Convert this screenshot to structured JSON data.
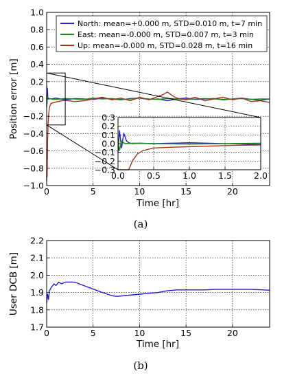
{
  "chart_data": [
    {
      "type": "line",
      "panel_label": "(a)",
      "xlabel": "Time [hr]",
      "ylabel": "Position error [m]",
      "xlim": [
        0,
        24
      ],
      "ylim": [
        -1.0,
        1.0
      ],
      "xticks": [
        "0",
        "5",
        "10",
        "15",
        "20"
      ],
      "xtick_values": [
        0,
        5,
        10,
        15,
        20
      ],
      "yticks": [
        "−1.0",
        "−0.8",
        "−0.6",
        "−0.4",
        "−0.2",
        "0.0",
        "0.2",
        "0.4",
        "0.6",
        "0.8",
        "1.0"
      ],
      "ytick_values": [
        -1.0,
        -0.8,
        -0.6,
        -0.4,
        -0.2,
        0.0,
        0.2,
        0.4,
        0.6,
        0.8,
        1.0
      ],
      "grid": true,
      "legend_position": "top-right",
      "series": [
        {
          "name": "North: mean=+0.000 m, STD=0.010 m, t=7 min",
          "color": "#1f1fd0",
          "x": [
            0,
            0.02,
            0.05,
            0.08,
            0.12,
            0.15,
            0.2,
            0.3,
            0.5,
            1,
            2,
            3,
            4,
            5,
            6,
            7,
            8,
            9,
            10,
            11,
            12,
            13,
            14,
            15,
            16,
            17,
            18,
            19,
            20,
            21,
            22,
            23,
            24
          ],
          "y": [
            -0.1,
            0.15,
            -0.05,
            0.12,
            0.03,
            0.01,
            0.0,
            0.005,
            0.0,
            0.01,
            -0.01,
            0.005,
            0.0,
            -0.005,
            0.01,
            0.0,
            -0.01,
            0.005,
            0.01,
            -0.005,
            0.0,
            -0.02,
            0.0,
            0.01,
            -0.005,
            0.0,
            0.005,
            -0.01,
            0.0,
            0.01,
            -0.005,
            -0.015,
            0.0
          ]
        },
        {
          "name": "East: mean=-0.000 m, STD=0.007 m, t=3 min",
          "color": "#1a8a1a",
          "x": [
            0,
            0.02,
            0.05,
            0.1,
            0.2,
            0.5,
            1,
            2,
            3,
            4,
            5,
            6,
            7,
            8,
            9,
            10,
            11,
            12,
            13,
            14,
            15,
            16,
            17,
            18,
            19,
            20,
            21,
            22,
            23,
            24
          ],
          "y": [
            0.05,
            -0.08,
            0.03,
            0.0,
            0.005,
            0.0,
            -0.005,
            0.005,
            0.0,
            -0.005,
            0.01,
            0.0,
            0.005,
            -0.005,
            0.0,
            0.01,
            0.0,
            -0.005,
            0.005,
            0.0,
            -0.005,
            0.0,
            0.005,
            0.0,
            -0.005,
            0.0,
            0.005,
            -0.005,
            0.0,
            0.0
          ]
        },
        {
          "name": "Up: mean=-0.000 m, STD=0.028 m, t=16 min",
          "color": "#a0321e",
          "x": [
            0,
            0.02,
            0.05,
            0.1,
            0.15,
            0.2,
            0.27,
            0.35,
            0.5,
            0.8,
            1.2,
            1.6,
            2,
            3,
            4,
            5,
            6,
            7,
            8,
            9,
            10,
            11,
            12,
            12.5,
            13,
            13.5,
            14,
            15,
            16,
            17,
            18,
            19,
            20,
            21,
            22,
            23,
            24
          ],
          "y": [
            -0.95,
            -0.6,
            -0.9,
            -0.5,
            -0.3,
            -0.2,
            -0.12,
            -0.08,
            -0.05,
            -0.04,
            -0.03,
            -0.02,
            -0.015,
            -0.03,
            -0.02,
            0.0,
            0.02,
            -0.01,
            0.01,
            -0.02,
            0.02,
            -0.01,
            0.03,
            0.05,
            0.08,
            0.04,
            0.01,
            -0.01,
            0.02,
            -0.02,
            0.0,
            0.02,
            -0.01,
            0.01,
            -0.03,
            -0.02,
            -0.04
          ]
        }
      ],
      "inset": {
        "xlim": [
          0,
          2.0
        ],
        "ylim": [
          -0.3,
          0.3
        ],
        "xticks": [
          "0.0",
          "0.5",
          "1.0",
          "1.5",
          "2.0"
        ],
        "xtick_values": [
          0,
          0.5,
          1.0,
          1.5,
          2.0
        ],
        "yticks": [
          "−0.3",
          "−0.2",
          "−0.1",
          "0.0",
          "0.1",
          "0.2",
          "0.3"
        ],
        "ytick_values": [
          -0.3,
          -0.2,
          -0.1,
          0.0,
          0.1,
          0.2,
          0.3
        ],
        "zoom_region": {
          "x": [
            0,
            2.0
          ],
          "y": [
            -0.3,
            0.3
          ]
        }
      }
    },
    {
      "type": "line",
      "panel_label": "(b)",
      "xlabel": "Time [hr]",
      "ylabel": "User DCB [m]",
      "xlim": [
        0,
        24
      ],
      "ylim": [
        1.7,
        2.2
      ],
      "xticks": [
        "0",
        "5",
        "10",
        "15",
        "20"
      ],
      "xtick_values": [
        0,
        5,
        10,
        15,
        20
      ],
      "yticks": [
        "1.7",
        "1.8",
        "1.9",
        "2.0",
        "2.1",
        "2.2"
      ],
      "ytick_values": [
        1.7,
        1.8,
        1.9,
        2.0,
        2.1,
        2.2
      ],
      "grid": true,
      "series": [
        {
          "color": "#1f1fd0",
          "x": [
            0,
            0.1,
            0.2,
            0.3,
            0.5,
            0.8,
            1.0,
            1.3,
            1.6,
            2.0,
            2.5,
            3.0,
            3.5,
            4.0,
            5.0,
            6.0,
            7.0,
            7.5,
            8.0,
            9.0,
            10.0,
            11.0,
            12.0,
            13.0,
            14.0,
            15.0,
            16.0,
            17.0,
            18.0,
            19.0,
            20.0,
            21.0,
            22.0,
            23.0,
            24.0
          ],
          "y": [
            1.84,
            1.89,
            1.86,
            1.91,
            1.93,
            1.95,
            1.94,
            1.96,
            1.95,
            1.96,
            1.96,
            1.96,
            1.95,
            1.94,
            1.92,
            1.9,
            1.882,
            1.878,
            1.88,
            1.885,
            1.89,
            1.895,
            1.9,
            1.91,
            1.915,
            1.915,
            1.915,
            1.915,
            1.918,
            1.918,
            1.918,
            1.918,
            1.918,
            1.916,
            1.913
          ]
        }
      ]
    }
  ]
}
